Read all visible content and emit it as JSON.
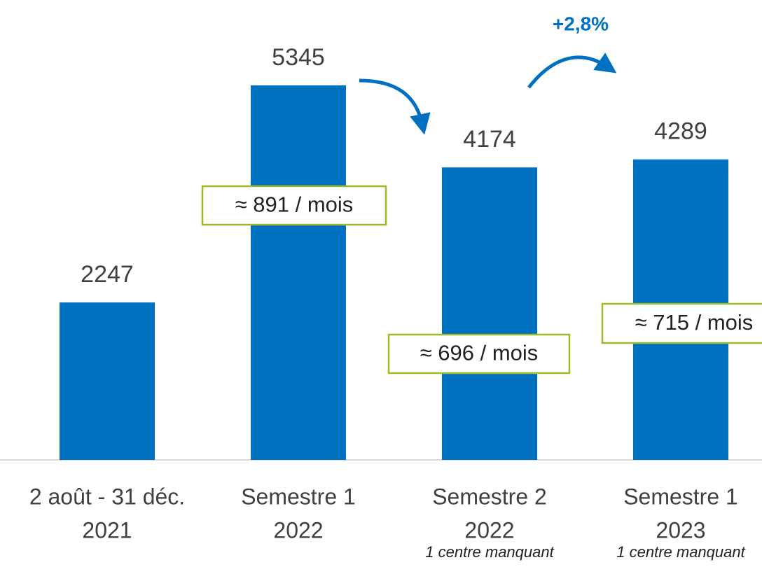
{
  "chart_data": {
    "type": "bar",
    "categories": [
      [
        "2 août - 31 déc.",
        "2021"
      ],
      [
        "Semestre 1",
        "2022"
      ],
      [
        "Semestre 2",
        "2022"
      ],
      [
        "Semestre 1",
        "2023"
      ]
    ],
    "values": [
      2247,
      5345,
      4174,
      4289
    ],
    "color": "#0070c0",
    "ylim": [
      0,
      6000
    ],
    "notes": [
      null,
      null,
      "1 centre manquant",
      "1 centre manquant"
    ],
    "annotations": [
      "≈ 891 / mois",
      "≈ 696 / mois",
      "≈ 715 / mois",
      "+2,8%"
    ]
  }
}
